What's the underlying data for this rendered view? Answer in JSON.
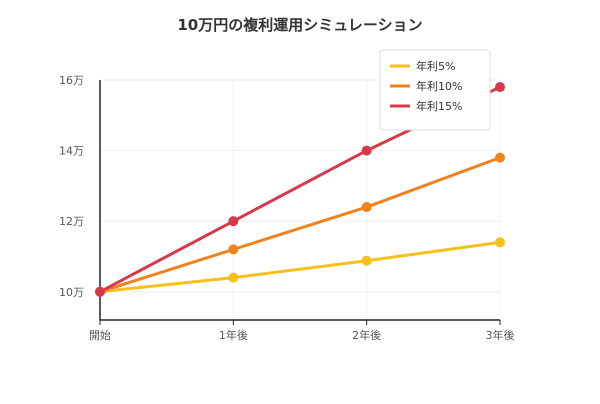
{
  "chart_data": {
    "type": "line",
    "title": "10万円の複利運用シミュレーション",
    "categories": [
      "開始",
      "1年後",
      "2年後",
      "3年後"
    ],
    "y_ticks": [
      {
        "value": 100000,
        "label": "10万"
      },
      {
        "value": 120000,
        "label": "12万"
      },
      {
        "value": 140000,
        "label": "14万"
      },
      {
        "value": 160000,
        "label": "16万"
      }
    ],
    "ylim": [
      92000,
      160000
    ],
    "grid": true,
    "legend_position": "top-right",
    "series": [
      {
        "name": "年利5%",
        "color": "#f5c01a",
        "values": [
          100000,
          104000,
          108800,
          114000
        ]
      },
      {
        "name": "年利10%",
        "color": "#f0821e",
        "values": [
          100000,
          112000,
          124000,
          138000
        ]
      },
      {
        "name": "年利15%",
        "color": "#d63a4a",
        "values": [
          100000,
          120000,
          140000,
          158000
        ]
      }
    ]
  }
}
